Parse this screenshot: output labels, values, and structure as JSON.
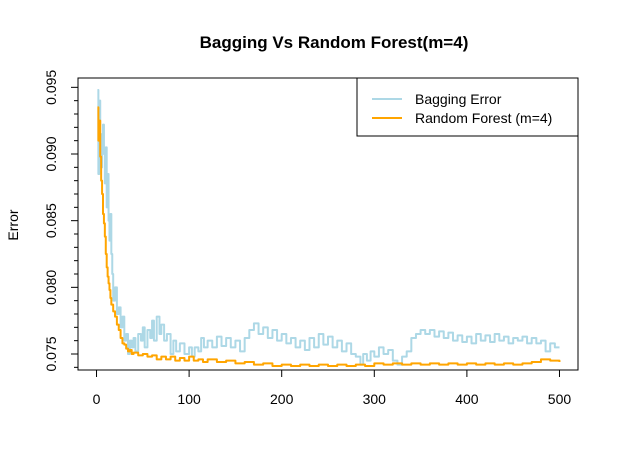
{
  "chart_data": {
    "type": "line",
    "title": "Bagging Vs Random Forest(m=4)",
    "xlabel": "",
    "ylabel": "Error",
    "xlim": [
      -20,
      520
    ],
    "ylim": [
      0.0738,
      0.0957
    ],
    "x_ticks": [
      0,
      100,
      200,
      300,
      400,
      500
    ],
    "x_tick_labels": [
      "0",
      "100",
      "200",
      "300",
      "400",
      "500"
    ],
    "y_ticks": [
      0.075,
      0.08,
      0.085,
      0.09,
      0.095
    ],
    "y_tick_labels": [
      "0.075",
      "0.080",
      "0.085",
      "0.090",
      "0.095"
    ],
    "legend_position": "top-right",
    "grid": false,
    "series": [
      {
        "name": "Bagging Error",
        "color": "#add8e6",
        "points": [
          [
            1,
            0.0948
          ],
          [
            2,
            0.0885
          ],
          [
            3,
            0.094
          ],
          [
            4,
            0.0905
          ],
          [
            5,
            0.089
          ],
          [
            6,
            0.0915
          ],
          [
            7,
            0.0922
          ],
          [
            8,
            0.09
          ],
          [
            9,
            0.0878
          ],
          [
            10,
            0.0905
          ],
          [
            11,
            0.086
          ],
          [
            12,
            0.0885
          ],
          [
            13,
            0.085
          ],
          [
            14,
            0.0835
          ],
          [
            15,
            0.0855
          ],
          [
            16,
            0.0825
          ],
          [
            17,
            0.081
          ],
          [
            18,
            0.079
          ],
          [
            20,
            0.08
          ],
          [
            22,
            0.078
          ],
          [
            24,
            0.0785
          ],
          [
            26,
            0.077
          ],
          [
            28,
            0.0778
          ],
          [
            30,
            0.076
          ],
          [
            32,
            0.0765
          ],
          [
            34,
            0.075
          ],
          [
            36,
            0.076
          ],
          [
            38,
            0.0755
          ],
          [
            40,
            0.0762
          ],
          [
            42,
            0.0752
          ],
          [
            45,
            0.0765
          ],
          [
            48,
            0.076
          ],
          [
            50,
            0.077
          ],
          [
            52,
            0.0755
          ],
          [
            55,
            0.0768
          ],
          [
            58,
            0.0762
          ],
          [
            60,
            0.0775
          ],
          [
            62,
            0.076
          ],
          [
            65,
            0.0778
          ],
          [
            68,
            0.0765
          ],
          [
            70,
            0.0772
          ],
          [
            73,
            0.076
          ],
          [
            76,
            0.0765
          ],
          [
            80,
            0.075
          ],
          [
            83,
            0.076
          ],
          [
            86,
            0.0752
          ],
          [
            90,
            0.0758
          ],
          [
            95,
            0.075
          ],
          [
            100,
            0.0755
          ],
          [
            103,
            0.0748
          ],
          [
            106,
            0.0755
          ],
          [
            110,
            0.0752
          ],
          [
            113,
            0.0762
          ],
          [
            116,
            0.0755
          ],
          [
            120,
            0.076
          ],
          [
            125,
            0.0755
          ],
          [
            130,
            0.0763
          ],
          [
            135,
            0.0756
          ],
          [
            140,
            0.0762
          ],
          [
            145,
            0.0755
          ],
          [
            150,
            0.076
          ],
          [
            155,
            0.0752
          ],
          [
            160,
            0.0762
          ],
          [
            165,
            0.0768
          ],
          [
            170,
            0.0773
          ],
          [
            175,
            0.0765
          ],
          [
            180,
            0.077
          ],
          [
            185,
            0.0762
          ],
          [
            190,
            0.0768
          ],
          [
            195,
            0.076
          ],
          [
            200,
            0.0765
          ],
          [
            205,
            0.0758
          ],
          [
            210,
            0.0762
          ],
          [
            215,
            0.0755
          ],
          [
            220,
            0.076
          ],
          [
            225,
            0.0753
          ],
          [
            230,
            0.0762
          ],
          [
            235,
            0.0755
          ],
          [
            240,
            0.0765
          ],
          [
            245,
            0.0757
          ],
          [
            250,
            0.0763
          ],
          [
            255,
            0.0755
          ],
          [
            260,
            0.076
          ],
          [
            265,
            0.0752
          ],
          [
            270,
            0.0758
          ],
          [
            275,
            0.075
          ],
          [
            280,
            0.0748
          ],
          [
            285,
            0.0742
          ],
          [
            288,
            0.075
          ],
          [
            292,
            0.0745
          ],
          [
            296,
            0.0752
          ],
          [
            300,
            0.0748
          ],
          [
            305,
            0.0755
          ],
          [
            310,
            0.075
          ],
          [
            315,
            0.0753
          ],
          [
            320,
            0.0745
          ],
          [
            325,
            0.0742
          ],
          [
            330,
            0.0748
          ],
          [
            335,
            0.0752
          ],
          [
            340,
            0.0762
          ],
          [
            345,
            0.0765
          ],
          [
            350,
            0.0768
          ],
          [
            355,
            0.0765
          ],
          [
            360,
            0.0768
          ],
          [
            365,
            0.0763
          ],
          [
            370,
            0.0767
          ],
          [
            375,
            0.0762
          ],
          [
            380,
            0.0766
          ],
          [
            385,
            0.076
          ],
          [
            390,
            0.0764
          ],
          [
            395,
            0.0759
          ],
          [
            400,
            0.0763
          ],
          [
            405,
            0.0758
          ],
          [
            410,
            0.0765
          ],
          [
            415,
            0.076
          ],
          [
            420,
            0.0764
          ],
          [
            425,
            0.0759
          ],
          [
            430,
            0.0765
          ],
          [
            435,
            0.076
          ],
          [
            440,
            0.0763
          ],
          [
            445,
            0.0758
          ],
          [
            450,
            0.0762
          ],
          [
            455,
            0.076
          ],
          [
            460,
            0.0763
          ],
          [
            465,
            0.0758
          ],
          [
            470,
            0.0762
          ],
          [
            475,
            0.0758
          ],
          [
            480,
            0.076
          ],
          [
            485,
            0.0752
          ],
          [
            490,
            0.0758
          ],
          [
            495,
            0.0755
          ],
          [
            500,
            0.0755
          ]
        ]
      },
      {
        "name": "Random Forest (m=4)",
        "color": "#ffa500",
        "points": [
          [
            1,
            0.0935
          ],
          [
            2,
            0.091
          ],
          [
            3,
            0.0925
          ],
          [
            4,
            0.0898
          ],
          [
            5,
            0.088
          ],
          [
            6,
            0.087
          ],
          [
            7,
            0.0855
          ],
          [
            8,
            0.0848
          ],
          [
            9,
            0.0838
          ],
          [
            10,
            0.0825
          ],
          [
            11,
            0.0815
          ],
          [
            12,
            0.0808
          ],
          [
            13,
            0.0803
          ],
          [
            14,
            0.0798
          ],
          [
            15,
            0.0792
          ],
          [
            16,
            0.0787
          ],
          [
            18,
            0.0782
          ],
          [
            20,
            0.0778
          ],
          [
            22,
            0.0772
          ],
          [
            24,
            0.0768
          ],
          [
            26,
            0.0762
          ],
          [
            28,
            0.0758
          ],
          [
            30,
            0.0757
          ],
          [
            32,
            0.0754
          ],
          [
            34,
            0.0752
          ],
          [
            36,
            0.0753
          ],
          [
            38,
            0.075
          ],
          [
            40,
            0.0751
          ],
          [
            45,
            0.0749
          ],
          [
            50,
            0.075
          ],
          [
            55,
            0.0748
          ],
          [
            60,
            0.0749
          ],
          [
            65,
            0.0746
          ],
          [
            70,
            0.0748
          ],
          [
            75,
            0.0746
          ],
          [
            80,
            0.0748
          ],
          [
            85,
            0.0745
          ],
          [
            90,
            0.0747
          ],
          [
            95,
            0.0745
          ],
          [
            100,
            0.0748
          ],
          [
            105,
            0.0745
          ],
          [
            110,
            0.0746
          ],
          [
            115,
            0.0744
          ],
          [
            120,
            0.0746
          ],
          [
            130,
            0.0744
          ],
          [
            140,
            0.0745
          ],
          [
            150,
            0.0743
          ],
          [
            160,
            0.0744
          ],
          [
            170,
            0.0742
          ],
          [
            180,
            0.0743
          ],
          [
            190,
            0.0741
          ],
          [
            200,
            0.0742
          ],
          [
            210,
            0.0741
          ],
          [
            220,
            0.0742
          ],
          [
            230,
            0.0741
          ],
          [
            240,
            0.0742
          ],
          [
            250,
            0.0741
          ],
          [
            260,
            0.0742
          ],
          [
            270,
            0.0741
          ],
          [
            280,
            0.0742
          ],
          [
            290,
            0.0741
          ],
          [
            300,
            0.0743
          ],
          [
            310,
            0.0742
          ],
          [
            320,
            0.0743
          ],
          [
            330,
            0.0742
          ],
          [
            340,
            0.0743
          ],
          [
            350,
            0.0742
          ],
          [
            360,
            0.0743
          ],
          [
            370,
            0.0742
          ],
          [
            380,
            0.0743
          ],
          [
            390,
            0.0742
          ],
          [
            400,
            0.0743
          ],
          [
            410,
            0.0742
          ],
          [
            420,
            0.0743
          ],
          [
            430,
            0.0742
          ],
          [
            440,
            0.0743
          ],
          [
            450,
            0.0742
          ],
          [
            460,
            0.0743
          ],
          [
            470,
            0.0744
          ],
          [
            480,
            0.0746
          ],
          [
            490,
            0.0745
          ],
          [
            500,
            0.0744
          ]
        ]
      }
    ]
  }
}
